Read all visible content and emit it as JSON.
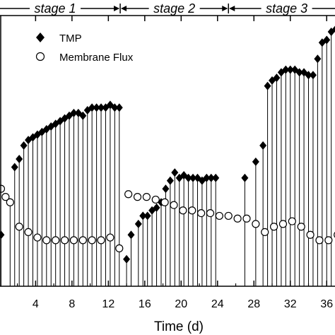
{
  "chart_data": {
    "type": "scatter",
    "xlabel": "Time (d)",
    "xlim": [
      -1,
      38
    ],
    "ylim": [
      0,
      100
    ],
    "x_ticks": [
      4,
      8,
      12,
      16,
      20,
      24,
      28,
      32,
      36
    ],
    "x_tick_labels": [
      "4",
      "8",
      "12",
      "16",
      "20",
      "24",
      "28",
      "32",
      "36"
    ],
    "stages": [
      {
        "label": "stage 1",
        "start": -1,
        "end": 13.3
      },
      {
        "label": "stage 2",
        "start": 13.3,
        "end": 25.2
      },
      {
        "label": "stage 3",
        "start": 25.2,
        "end": 38
      }
    ],
    "legend": {
      "position": "top-left",
      "entries": [
        {
          "name": "TMP",
          "marker": "filled-diamond"
        },
        {
          "name": "Membrane Flux",
          "marker": "open-circle"
        }
      ]
    },
    "series": [
      {
        "name": "TMP",
        "marker": "filled-diamond",
        "drop_lines": true,
        "x": [
          -0.8,
          0.2,
          1.2,
          1.7,
          2.2,
          2.7,
          3.2,
          3.7,
          4.2,
          4.7,
          5.2,
          5.7,
          6.2,
          6.7,
          7.2,
          7.7,
          8.2,
          8.7,
          9.2,
          9.7,
          10.2,
          10.7,
          11.2,
          11.7,
          12.2,
          12.7,
          13.2,
          14.0,
          14.5,
          15.3,
          15.8,
          16.3,
          16.8,
          17.3,
          17.8,
          18.3,
          18.8,
          19.3,
          19.8,
          20.3,
          20.8,
          21.3,
          21.8,
          22.3,
          22.8,
          23.3,
          23.8,
          27.0,
          28.2,
          29.0,
          29.5,
          30.0,
          30.5,
          31.0,
          31.5,
          32.0,
          32.5,
          33.0,
          33.5,
          34.0,
          34.5,
          35.0,
          35.5,
          36.0,
          36.5,
          37.0,
          37.5
        ],
        "values": [
          9,
          19,
          31,
          44,
          47,
          52,
          54,
          55,
          56,
          57,
          58,
          59,
          60,
          61,
          62,
          63,
          64,
          64,
          63,
          65,
          66,
          66,
          66,
          66,
          67,
          66,
          66,
          10,
          19,
          23,
          26,
          26,
          28,
          29,
          31,
          36,
          39,
          42,
          40,
          41,
          40,
          40,
          40,
          39,
          40,
          40,
          40,
          40,
          46,
          52,
          74,
          76,
          77,
          79,
          80,
          80,
          80,
          79,
          79,
          78,
          78,
          84,
          90,
          91,
          94,
          95,
          97
        ]
      },
      {
        "name": "Membrane Flux",
        "marker": "open-circle",
        "drop_lines": false,
        "x": [
          0.2,
          0.7,
          1.2,
          2.2,
          3.2,
          4.2,
          5.2,
          6.2,
          7.2,
          8.2,
          9.2,
          10.2,
          11.2,
          12.2,
          13.2,
          14.2,
          15.2,
          16.2,
          17.2,
          18.2,
          19.2,
          20.2,
          21.2,
          22.2,
          23.2,
          24.2,
          25.2,
          26.2,
          27.2,
          28.2,
          29.2,
          30.2,
          31.2,
          32.2,
          33.2,
          34.2,
          35.2,
          36.2,
          37.2
        ],
        "values": [
          36,
          33,
          31,
          22,
          20,
          18,
          17,
          17,
          17,
          17,
          17,
          17,
          17,
          18,
          14,
          34,
          33,
          33,
          32,
          31,
          30,
          28,
          28,
          27,
          27,
          26,
          26,
          25,
          25,
          23,
          20,
          22,
          23,
          24,
          22,
          19,
          17,
          17,
          19
        ]
      }
    ]
  }
}
